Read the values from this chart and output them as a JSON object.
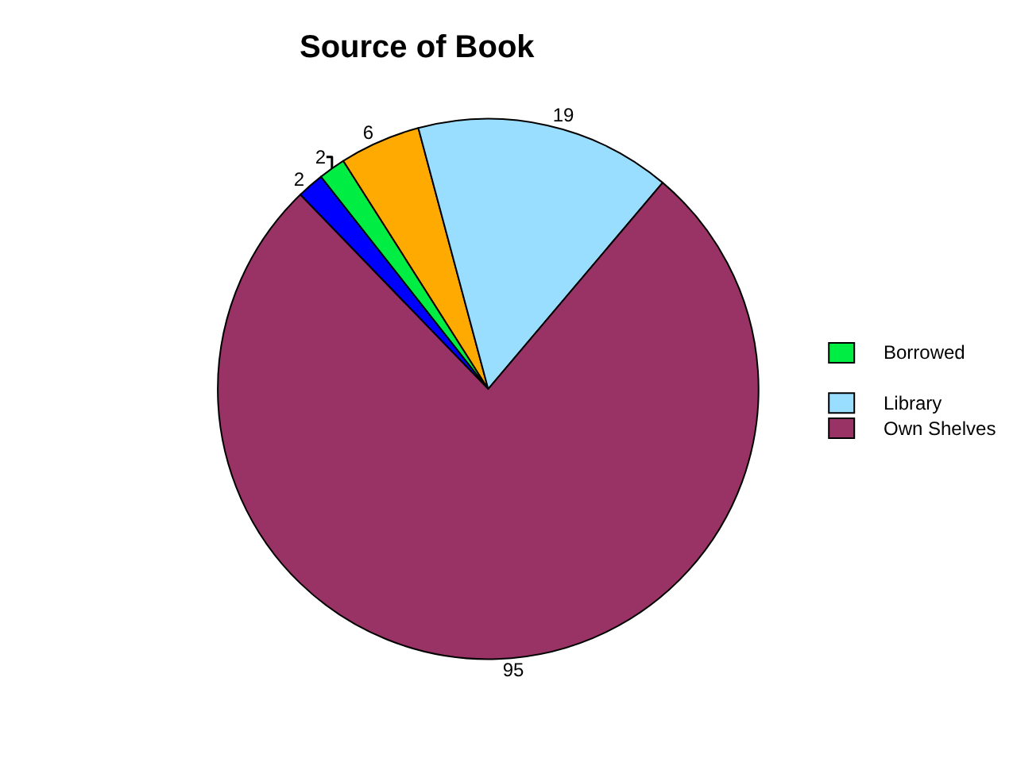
{
  "chart_data": {
    "type": "pie",
    "title": "Source of Book",
    "categories": [
      null,
      "Borrowed",
      null,
      "Library",
      "Own Shelves"
    ],
    "values": [
      2,
      2,
      6,
      19,
      95
    ],
    "colors": [
      "#0000ff",
      "#00ee44",
      "#ffaa00",
      "#99ddff",
      "#993366"
    ],
    "data_labels": true,
    "legend": "right"
  }
}
